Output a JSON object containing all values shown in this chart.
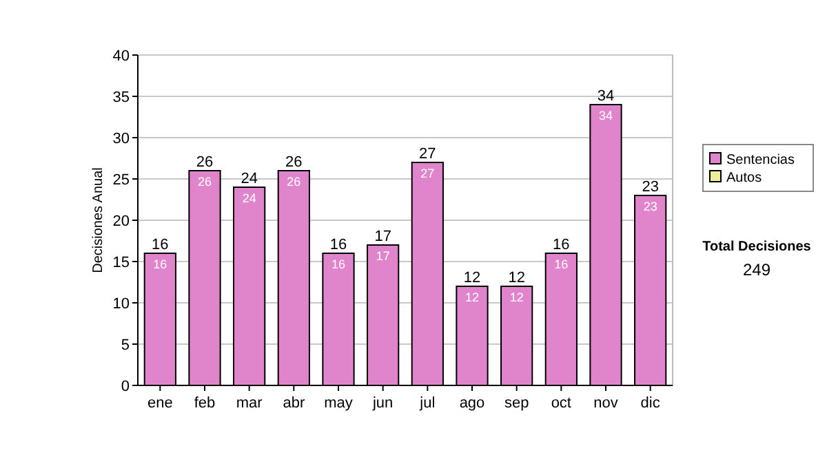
{
  "chart_data": {
    "type": "bar",
    "ylabel": "Decisiones Anual",
    "categories": [
      "ene",
      "feb",
      "mar",
      "abr",
      "may",
      "jun",
      "jul",
      "ago",
      "sep",
      "oct",
      "nov",
      "dic"
    ],
    "stacked": true,
    "series": [
      {
        "name": "Sentencias",
        "color": "#e085cc",
        "values": [
          16,
          26,
          24,
          26,
          16,
          17,
          27,
          12,
          12,
          16,
          34,
          23
        ],
        "value_labels": [
          "16",
          "26",
          "24",
          "26",
          "16",
          "17",
          "27",
          "12",
          "12",
          "16",
          "34",
          "23"
        ]
      },
      {
        "name": "Autos",
        "color": "#eeee99",
        "values": [
          0,
          0,
          0,
          0,
          0,
          0,
          0,
          0,
          0,
          0,
          0,
          0
        ]
      }
    ],
    "totals": [
      "16",
      "26",
      "24",
      "26",
      "16",
      "17",
      "27",
      "12",
      "12",
      "16",
      "34",
      "23"
    ],
    "ylim": [
      0,
      40
    ],
    "yticks": [
      0,
      5,
      10,
      15,
      20,
      25,
      30,
      35,
      40
    ],
    "grid": "y",
    "legend": "right",
    "annotations": [
      "Total Decisiones",
      "249"
    ]
  }
}
